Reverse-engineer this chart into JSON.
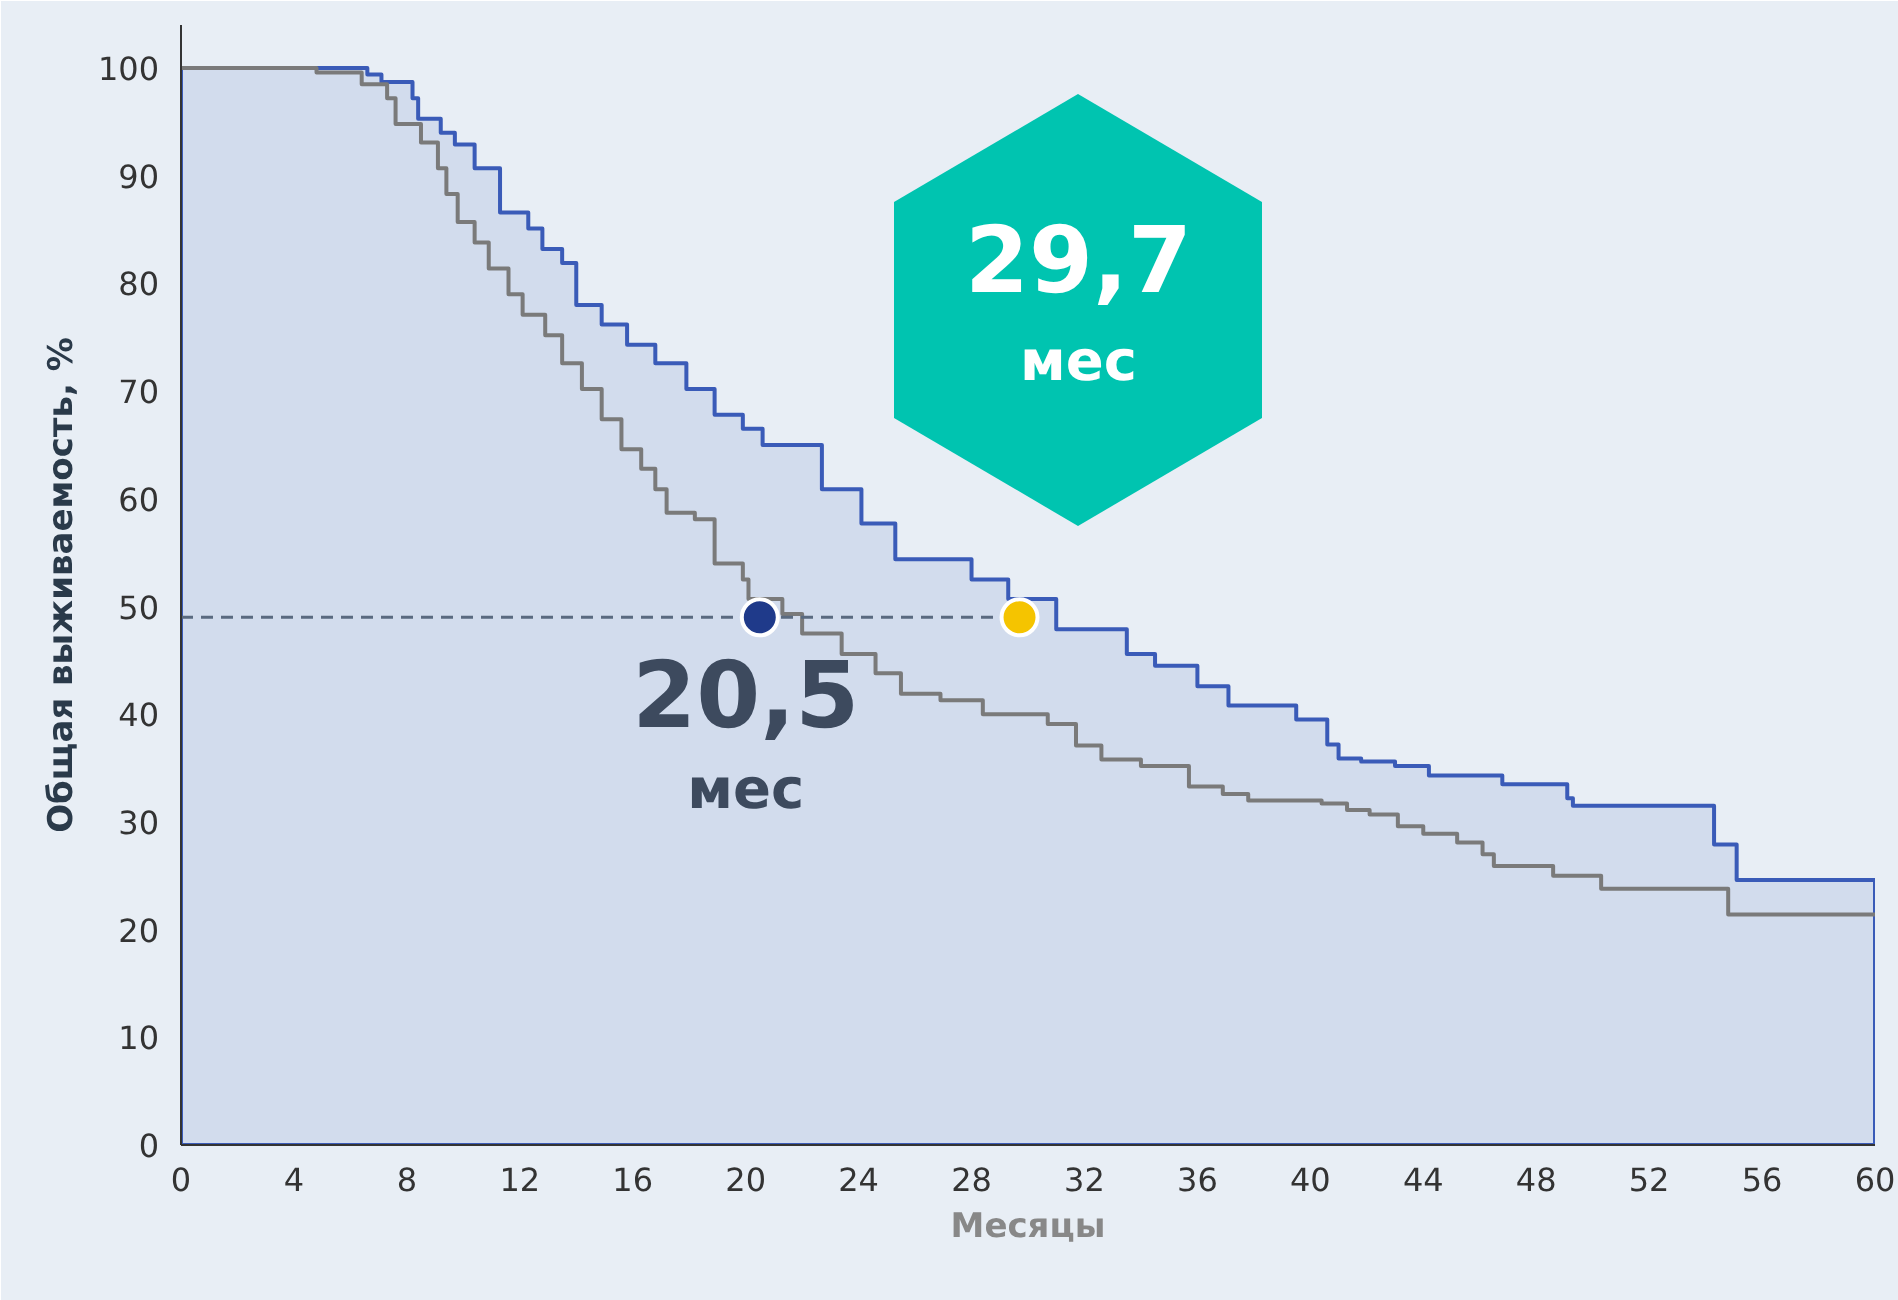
{
  "chart_data": {
    "type": "area",
    "xlabel": "Месяцы",
    "ylabel": "Общая выживаемость, %",
    "xlim": [
      0,
      60
    ],
    "ylim": [
      0,
      104
    ],
    "xticks": [
      0,
      4,
      8,
      12,
      16,
      20,
      24,
      28,
      32,
      36,
      40,
      44,
      48,
      52,
      56,
      60
    ],
    "yticks": [
      0,
      10,
      20,
      30,
      40,
      50,
      60,
      70,
      80,
      90,
      100
    ],
    "grid": false,
    "series": [
      {
        "color": "#3a5bb8",
        "x": [
          0,
          4.0,
          6.6,
          7.1,
          8.2,
          8.4,
          9.2,
          9.7,
          10.4,
          11.3,
          12.3,
          12.8,
          13.5,
          14.0,
          14.9,
          15.8,
          16.8,
          17.9,
          18.9,
          19.9,
          20.6,
          22.7,
          24.1,
          25.3,
          28.0,
          29.3,
          31.0,
          33.5,
          34.5,
          36.0,
          37.1,
          39.5,
          40.6,
          41.0,
          41.8,
          43.0,
          44.2,
          46.8,
          49.1,
          49.3,
          54.3,
          55.1,
          60
        ],
        "values": [
          100,
          100,
          99.4,
          98.7,
          97.2,
          95.3,
          94.0,
          92.9,
          90.7,
          86.6,
          85.1,
          83.2,
          81.9,
          78.0,
          76.2,
          74.3,
          72.6,
          70.2,
          67.8,
          66.5,
          65.0,
          60.9,
          57.7,
          54.4,
          52.5,
          50.7,
          47.9,
          45.6,
          44.5,
          42.6,
          40.8,
          39.5,
          37.2,
          35.9,
          35.6,
          35.2,
          34.3,
          33.5,
          32.2,
          31.5,
          27.9,
          24.6,
          24.6
        ]
      },
      {
        "type": "step",
        "color": "#7a7a7a",
        "x": [
          0,
          4.8,
          6.4,
          7.3,
          7.6,
          8.5,
          9.1,
          9.4,
          9.8,
          10.4,
          10.9,
          11.6,
          12.1,
          12.9,
          13.5,
          14.2,
          14.9,
          15.6,
          16.3,
          16.8,
          17.2,
          18.2,
          18.9,
          19.9,
          20.1,
          21.3,
          22.0,
          23.4,
          24.6,
          25.5,
          26.9,
          28.4,
          30.7,
          31.7,
          32.6,
          34.0,
          35.7,
          36.9,
          37.8,
          40.4,
          41.3,
          42.1,
          43.1,
          44.0,
          45.2,
          46.1,
          46.5,
          48.6,
          50.3,
          54.8,
          60
        ],
        "values": [
          100,
          99.6,
          98.5,
          97.2,
          94.8,
          93.1,
          90.7,
          88.3,
          85.7,
          83.8,
          81.4,
          79.0,
          77.1,
          75.2,
          72.6,
          70.2,
          67.4,
          64.6,
          62.8,
          60.9,
          58.7,
          58.1,
          54.0,
          52.5,
          50.7,
          49.3,
          47.5,
          45.6,
          43.8,
          41.9,
          41.3,
          40.0,
          39.1,
          37.1,
          35.8,
          35.2,
          33.3,
          32.6,
          32.0,
          31.7,
          31.1,
          30.7,
          29.6,
          28.9,
          28.1,
          27.0,
          25.9,
          25.0,
          23.8,
          21.4,
          21.4
        ]
      },
      {
        "type": "line",
        "color": "#5a6a80",
        "line_style": "dashed",
        "x": [
          0,
          29.7
        ],
        "values": [
          49,
          49
        ]
      },
      {
        "type": "scatter",
        "color": "#1f3a8a",
        "x": [
          20.5
        ],
        "values": [
          49
        ]
      },
      {
        "type": "scatter",
        "color": "#f5c400",
        "x": [
          29.7
        ],
        "values": [
          49
        ]
      }
    ],
    "annotations": [
      {
        "text": "20,5\nмес",
        "x": 20.5,
        "y": 49
      },
      {
        "text": "29,7\nмес",
        "x": 29.7,
        "y": 49
      }
    ]
  }
}
